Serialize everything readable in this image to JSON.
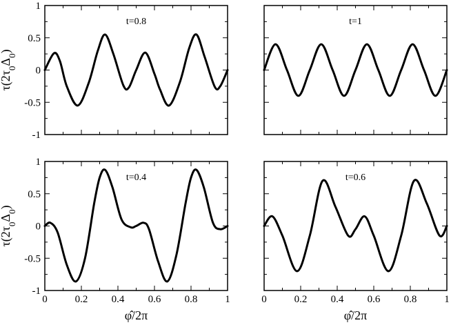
{
  "chart_data": [
    {
      "type": "line",
      "panel": "top-left",
      "annotation": "t=0.8",
      "xlim": [
        0,
        1
      ],
      "ylim": [
        -1,
        1
      ],
      "xticks": [
        0,
        0.2,
        0.4,
        0.6,
        0.8,
        1
      ],
      "yticks": [
        -1,
        -0.5,
        0,
        0.5,
        1
      ],
      "ytick_labels": [
        "-1",
        "-0.5",
        "0",
        "0.5",
        "1"
      ],
      "xtick_labels": [],
      "ylabel": "τ(2τ0Δ0)",
      "series": [
        {
          "x": [
            0,
            0.05,
            0.0825,
            0.12,
            0.18,
            0.24,
            0.29,
            0.33,
            0.375,
            0.43,
            0.46,
            0.5,
            0.55,
            0.6,
            0.63,
            0.68,
            0.74,
            0.79,
            0.83,
            0.875,
            0.93,
            0.96,
            1
          ],
          "values": [
            0,
            0.26,
            0.14,
            -0.25,
            -0.55,
            -0.2,
            0.3,
            0.55,
            0.25,
            -0.24,
            -0.27,
            0.0,
            0.27,
            -0.06,
            -0.3,
            -0.55,
            -0.18,
            0.34,
            0.55,
            0.2,
            -0.26,
            -0.25,
            0.0
          ]
        }
      ]
    },
    {
      "type": "line",
      "panel": "top-right",
      "annotation": "t=1",
      "xlim": [
        0,
        1
      ],
      "ylim": [
        -1,
        1
      ],
      "xticks": [
        0,
        0.2,
        0.4,
        0.6,
        0.8,
        1
      ],
      "yticks": [
        -1,
        -0.5,
        0,
        0.5,
        1
      ],
      "ytick_labels": [],
      "xtick_labels": [],
      "series": [
        {
          "x": [
            0,
            0.0625,
            0.125,
            0.1875,
            0.25,
            0.3125,
            0.375,
            0.4375,
            0.5,
            0.5625,
            0.625,
            0.6875,
            0.75,
            0.8125,
            0.875,
            0.9375,
            1
          ],
          "values": [
            0,
            0.4,
            0,
            -0.4,
            0,
            0.4,
            0,
            -0.4,
            0,
            0.4,
            0,
            -0.4,
            0,
            0.4,
            0,
            -0.4,
            0
          ]
        }
      ]
    },
    {
      "type": "line",
      "panel": "bottom-left",
      "annotation": "t=0.4",
      "xlim": [
        0,
        1
      ],
      "ylim": [
        -1,
        1
      ],
      "xticks": [
        0,
        0.2,
        0.4,
        0.6,
        0.8,
        1
      ],
      "yticks": [
        -1,
        -0.5,
        0,
        0.5,
        1
      ],
      "ytick_labels": [
        "-1",
        "-0.5",
        "0",
        "0.5",
        "1"
      ],
      "xtick_labels": [
        "0",
        "0.2",
        "0.4",
        "0.6",
        "0.8",
        "1"
      ],
      "ylabel": "τ(2τ0Δ0)",
      "xlabel": "φ̂/2π",
      "series": [
        {
          "x": [
            0,
            0.03,
            0.07,
            0.12,
            0.17,
            0.22,
            0.27,
            0.3,
            0.33,
            0.37,
            0.42,
            0.47,
            0.5,
            0.54,
            0.57,
            0.62,
            0.67,
            0.72,
            0.77,
            0.8,
            0.83,
            0.87,
            0.92,
            0.96,
            1
          ],
          "values": [
            0,
            0.05,
            -0.1,
            -0.6,
            -0.86,
            -0.5,
            0.35,
            0.75,
            0.87,
            0.6,
            0.1,
            -0.02,
            0.0,
            0.05,
            -0.05,
            -0.55,
            -0.86,
            -0.45,
            0.35,
            0.75,
            0.87,
            0.6,
            0.05,
            -0.05,
            0.0
          ]
        }
      ]
    },
    {
      "type": "line",
      "panel": "bottom-right",
      "annotation": "t=0.6",
      "xlim": [
        0,
        1
      ],
      "ylim": [
        -1,
        1
      ],
      "xticks": [
        0,
        0.2,
        0.4,
        0.6,
        0.8,
        1
      ],
      "yticks": [
        -1,
        -0.5,
        0,
        0.5,
        1
      ],
      "ytick_labels": [],
      "xtick_labels": [
        "0",
        "0.2",
        "0.4",
        "0.6",
        "0.8",
        "1"
      ],
      "xlabel": "φ̂/2π",
      "series": [
        {
          "x": [
            0,
            0.045,
            0.1,
            0.18,
            0.25,
            0.32,
            0.39,
            0.46,
            0.5,
            0.55,
            0.6,
            0.68,
            0.75,
            0.82,
            0.89,
            0.96,
            1
          ],
          "values": [
            0,
            0.15,
            -0.15,
            -0.7,
            -0.15,
            0.7,
            0.3,
            -0.15,
            -0.05,
            0.15,
            -0.15,
            -0.7,
            -0.15,
            0.7,
            0.35,
            -0.15,
            0.0
          ]
        }
      ]
    }
  ]
}
